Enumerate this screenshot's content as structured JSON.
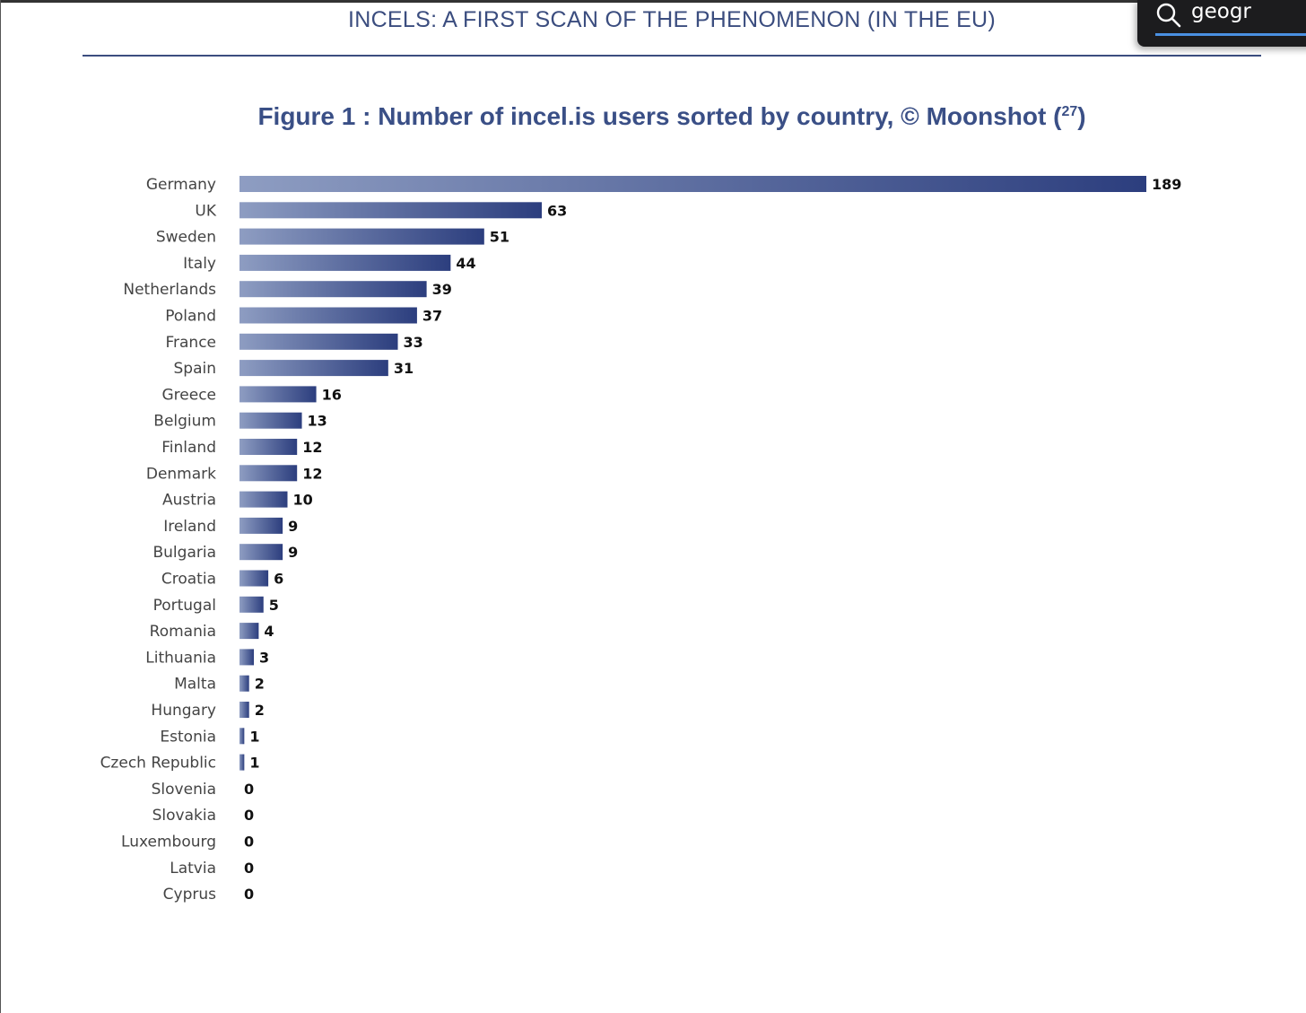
{
  "header": {
    "title": "INCELS: A FIRST SCAN OF THE PHENOMENON (IN THE EU)"
  },
  "figure": {
    "title": "Figure 1 : Number of incel.is users sorted by country, © Moonshot (",
    "footnote_ref": "27",
    "title_close": ")"
  },
  "search": {
    "value": "geogr",
    "icon": "search-icon"
  },
  "colors": {
    "bar_start": "#8e9dc2",
    "bar_end": "#2c3e7e",
    "title": "#3a4f86"
  },
  "chart_data": {
    "type": "bar",
    "orientation": "horizontal",
    "title": "Figure 1 : Number of incel.is users sorted by country, © Moonshot (27)",
    "xlabel": "",
    "ylabel": "",
    "xlim": [
      0,
      189
    ],
    "grid": false,
    "legend": "none",
    "categories": [
      "Germany",
      "UK",
      "Sweden",
      "Italy",
      "Netherlands",
      "Poland",
      "France",
      "Spain",
      "Greece",
      "Belgium",
      "Finland",
      "Denmark",
      "Austria",
      "Ireland",
      "Bulgaria",
      "Croatia",
      "Portugal",
      "Romania",
      "Lithuania",
      "Malta",
      "Hungary",
      "Estonia",
      "Czech Republic",
      "Slovenia",
      "Slovakia",
      "Luxembourg",
      "Latvia",
      "Cyprus"
    ],
    "values": [
      189,
      63,
      51,
      44,
      39,
      37,
      33,
      31,
      16,
      13,
      12,
      12,
      10,
      9,
      9,
      6,
      5,
      4,
      3,
      2,
      2,
      1,
      1,
      0,
      0,
      0,
      0,
      0
    ]
  }
}
